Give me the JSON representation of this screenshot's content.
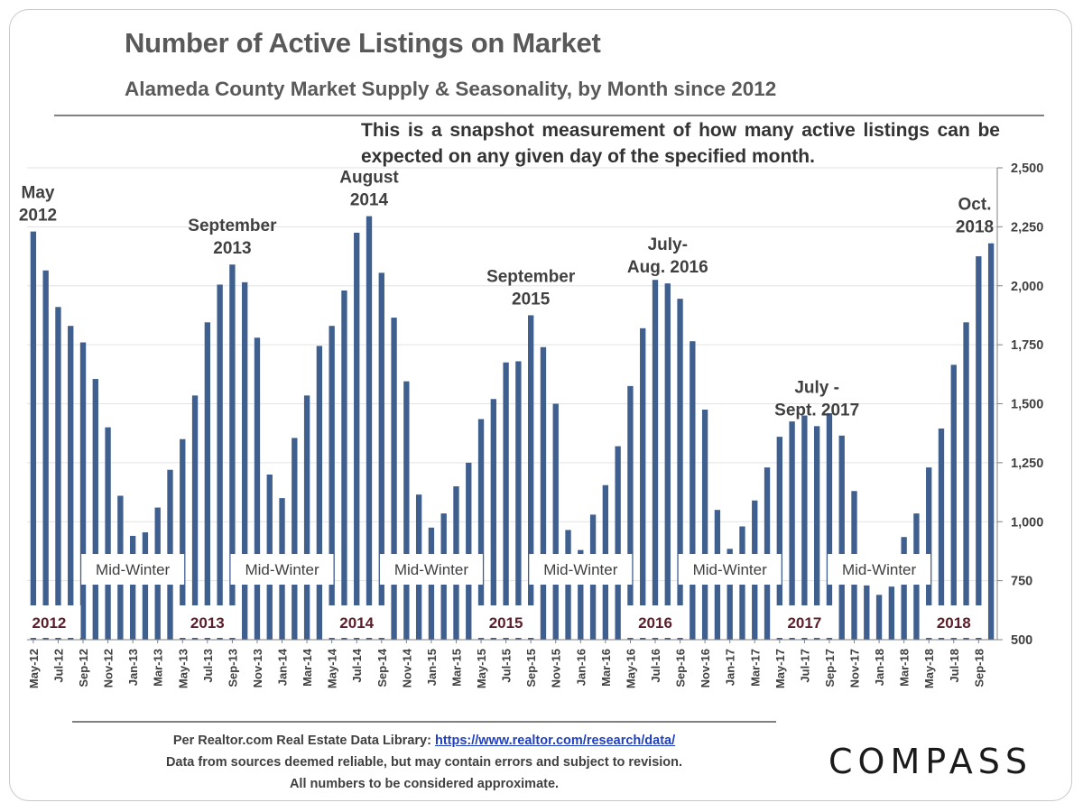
{
  "chart_data": {
    "type": "bar",
    "title": "Number of Active Listings on Market",
    "subtitle": "Alameda County Market Supply & Seasonality, by Month since 2012",
    "note": "This is a snapshot measurement of how many active listings can be expected on any given day of the specified month.",
    "ylim": [
      500,
      2500
    ],
    "yticks": [
      500,
      750,
      1000,
      1250,
      1500,
      1750,
      2000,
      2250,
      2500
    ],
    "ytick_labels": [
      "500",
      "750",
      "1,000",
      "1,250",
      "1,500",
      "1,750",
      "2,000",
      "2,250",
      "2,500"
    ],
    "grid": true,
    "color": "#3f5f8f",
    "categories": [
      "May-12",
      "Jun-12",
      "Jul-12",
      "Aug-12",
      "Sep-12",
      "Oct-12",
      "Nov-12",
      "Dec-12",
      "Jan-13",
      "Feb-13",
      "Mar-13",
      "Apr-13",
      "May-13",
      "Jun-13",
      "Jul-13",
      "Aug-13",
      "Sep-13",
      "Oct-13",
      "Nov-13",
      "Dec-13",
      "Jan-14",
      "Feb-14",
      "Mar-14",
      "Apr-14",
      "May-14",
      "Jun-14",
      "Jul-14",
      "Aug-14",
      "Sep-14",
      "Oct-14",
      "Nov-14",
      "Dec-14",
      "Jan-15",
      "Feb-15",
      "Mar-15",
      "Apr-15",
      "May-15",
      "Jun-15",
      "Jul-15",
      "Aug-15",
      "Sep-15",
      "Oct-15",
      "Nov-15",
      "Dec-15",
      "Jan-16",
      "Feb-16",
      "Mar-16",
      "Apr-16",
      "May-16",
      "Jun-16",
      "Jul-16",
      "Aug-16",
      "Sep-16",
      "Oct-16",
      "Nov-16",
      "Dec-16",
      "Jan-17",
      "Feb-17",
      "Mar-17",
      "Apr-17",
      "May-17",
      "Jun-17",
      "Jul-17",
      "Aug-17",
      "Sep-17",
      "Oct-17",
      "Nov-17",
      "Dec-17",
      "Jan-18",
      "Feb-18",
      "Mar-18",
      "Apr-18",
      "May-18",
      "Jun-18",
      "Jul-18",
      "Aug-18",
      "Sep-18",
      "Oct-18"
    ],
    "xtick_labels": [
      "May-12",
      "Jul-12",
      "Sep-12",
      "Nov-12",
      "Jan-13",
      "Mar-13",
      "May-13",
      "Jul-13",
      "Sep-13",
      "Nov-13",
      "Jan-14",
      "Mar-14",
      "May-14",
      "Jul-14",
      "Sep-14",
      "Nov-14",
      "Jan-15",
      "Mar-15",
      "May-15",
      "Jul-15",
      "Sep-15",
      "Nov-15",
      "Jan-16",
      "Mar-16",
      "May-16",
      "Jul-16",
      "Sep-16",
      "Nov-16",
      "Jan-17",
      "Mar-17",
      "May-17",
      "Jul-17",
      "Sep-17",
      "Nov-17",
      "Jan-18",
      "Mar-18",
      "May-18",
      "Jul-18",
      "Sep-18"
    ],
    "values": [
      2230,
      2065,
      1910,
      1830,
      1760,
      1605,
      1400,
      1110,
      940,
      955,
      1060,
      1220,
      1350,
      1535,
      1845,
      2005,
      2090,
      2015,
      1780,
      1200,
      1100,
      1355,
      1535,
      1745,
      1830,
      1980,
      2225,
      2295,
      2055,
      1865,
      1595,
      1115,
      975,
      1035,
      1150,
      1250,
      1435,
      1520,
      1675,
      1680,
      1875,
      1740,
      1500,
      965,
      880,
      1030,
      1155,
      1320,
      1575,
      1820,
      2025,
      2010,
      1945,
      1765,
      1475,
      1050,
      885,
      980,
      1090,
      1230,
      1360,
      1425,
      1450,
      1405,
      1460,
      1365,
      1130,
      730,
      690,
      725,
      935,
      1035,
      1230,
      1395,
      1665,
      1845,
      2125,
      2180
    ],
    "peak_annotations": [
      {
        "label": "May\n2012",
        "category": "May-12"
      },
      {
        "label": "September\n2013",
        "category": "Sep-13"
      },
      {
        "label": "August\n2014",
        "category": "Aug-14"
      },
      {
        "label": "September\n2015",
        "category": "Sep-15"
      },
      {
        "label": "July-\nAug. 2016",
        "category": "Aug-16"
      },
      {
        "label": "July -\nSept. 2017",
        "category": "Aug-17"
      },
      {
        "label": "Oct.\n2018",
        "category": "Oct-18"
      }
    ],
    "winter_labels": [
      "Mid-Winter",
      "Mid-Winter",
      "Mid-Winter",
      "Mid-Winter",
      "Mid-Winter",
      "Mid-Winter"
    ],
    "year_labels": [
      "2012",
      "2013",
      "2014",
      "2015",
      "2016",
      "2017",
      "2018"
    ]
  },
  "footer": {
    "source_prefix": "Per Realtor.com Real Estate  Data Library: ",
    "source_link": "https://www.realtor.com/research/data/",
    "line2": "Data from sources  deemed reliable, but may contain errors and subject to revision.",
    "line3": "All numbers to be considered approximate."
  },
  "brand": "COMPASS"
}
